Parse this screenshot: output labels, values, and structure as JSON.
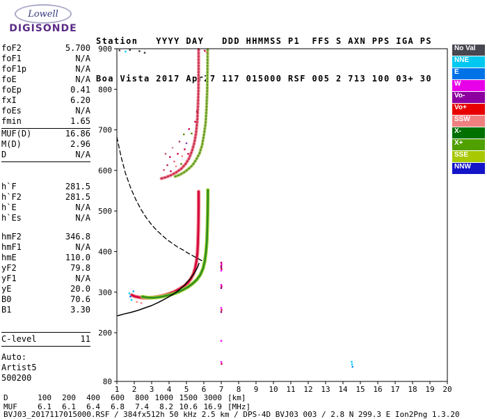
{
  "logo": {
    "name": "Lowell",
    "product": "DIGISONDE"
  },
  "header": {
    "line1": "Station   YYYY DAY   DDD HHMMSS P1  FFS S AXN PPS IGA PS",
    "line2": "Boa Vista 2017 Apr27 117 015000 RSF 005 2 713 100 03+ 30"
  },
  "param_panel": {
    "groups": [
      {
        "rows": [
          {
            "label": "foF2",
            "value": "5.700"
          },
          {
            "label": "foF1",
            "value": "N/A"
          },
          {
            "label": "foF1p",
            "value": "N/A"
          },
          {
            "label": "foE",
            "value": "N/A"
          },
          {
            "label": "foEp",
            "value": "0.41"
          },
          {
            "label": "fxI",
            "value": "6.20"
          },
          {
            "label": "foEs",
            "value": "N/A"
          },
          {
            "label": "fmin",
            "value": "1.65"
          }
        ]
      },
      {
        "rows": [
          {
            "label": "MUF(D)",
            "value": "16.86"
          },
          {
            "label": "M(D)",
            "value": "2.96"
          },
          {
            "label": "D",
            "value": "N/A"
          }
        ]
      },
      {
        "rows": [
          {
            "label": "h`F",
            "value": "281.5"
          },
          {
            "label": "h`F2",
            "value": "281.5"
          },
          {
            "label": "h`E",
            "value": "N/A"
          },
          {
            "label": "h`Es",
            "value": "N/A"
          }
        ]
      },
      {
        "rows": [
          {
            "label": "hmF2",
            "value": "346.8"
          },
          {
            "label": "hmF1",
            "value": "N/A"
          },
          {
            "label": "hmE",
            "value": "110.0"
          },
          {
            "label": "yF2",
            "value": "79.8"
          },
          {
            "label": "yF1",
            "value": "N/A"
          },
          {
            "label": "yE",
            "value": "20.0"
          },
          {
            "label": "B0",
            "value": "70.6"
          },
          {
            "label": "B1",
            "value": "3.30"
          }
        ]
      },
      {
        "rows": [
          {
            "label": "C-level",
            "value": "11"
          }
        ]
      }
    ],
    "footer_lines": [
      "Auto:",
      "Artist5",
      "500200"
    ]
  },
  "legend": {
    "text_color": "#ffffff",
    "items": [
      {
        "label": "No Val",
        "color": "#474751"
      },
      {
        "label": "NNE",
        "color": "#00c8f0"
      },
      {
        "label": "E",
        "color": "#0072e8"
      },
      {
        "label": "W",
        "color": "#e800e8"
      },
      {
        "label": "Vo-",
        "color": "#8c00a0"
      },
      {
        "label": "Vo+",
        "color": "#e80000"
      },
      {
        "label": "SSW",
        "color": "#f08080"
      },
      {
        "label": "X-",
        "color": "#007000"
      },
      {
        "label": "X+",
        "color": "#50a000"
      },
      {
        "label": "SSE",
        "color": "#a8c800"
      },
      {
        "label": "NNW",
        "color": "#1414c8"
      }
    ]
  },
  "chart_data": {
    "type": "scatter",
    "title": "",
    "xlabel": "",
    "ylabel": "",
    "x_unit": "MHz",
    "y_unit": "km",
    "xlim": [
      1,
      20
    ],
    "ylim": [
      80,
      900
    ],
    "grid": false,
    "x_ticks": [
      1,
      2,
      3,
      4,
      5,
      6,
      7,
      8,
      9,
      10,
      11,
      12,
      13,
      14,
      15,
      16,
      17,
      18,
      19,
      20
    ],
    "y_ticks": [
      80,
      200,
      300,
      400,
      500,
      600,
      700,
      800,
      900
    ],
    "series": [
      {
        "name": "F2 O-mode trace",
        "color": "#d40040",
        "halo": "#f08080",
        "width": 2.6,
        "points": [
          [
            1.85,
            293
          ],
          [
            2.0,
            290
          ],
          [
            2.2,
            288
          ],
          [
            2.5,
            286
          ],
          [
            2.8,
            286
          ],
          [
            3.1,
            287
          ],
          [
            3.4,
            289
          ],
          [
            3.7,
            292
          ],
          [
            4.0,
            296
          ],
          [
            4.3,
            301
          ],
          [
            4.6,
            308
          ],
          [
            4.9,
            316
          ],
          [
            5.1,
            324
          ],
          [
            5.25,
            333
          ],
          [
            5.4,
            345
          ],
          [
            5.5,
            359
          ],
          [
            5.58,
            377
          ],
          [
            5.63,
            398
          ],
          [
            5.66,
            422
          ],
          [
            5.68,
            450
          ],
          [
            5.69,
            480
          ],
          [
            5.7,
            512
          ],
          [
            5.7,
            548
          ]
        ]
      },
      {
        "name": "F2 X-mode trace",
        "color": "#2d8a1e",
        "halo": "#9acd32",
        "width": 2.4,
        "points": [
          [
            2.45,
            289
          ],
          [
            2.7,
            287
          ],
          [
            3.0,
            286
          ],
          [
            3.3,
            287
          ],
          [
            3.6,
            289
          ],
          [
            3.9,
            292
          ],
          [
            4.2,
            295
          ],
          [
            4.5,
            300
          ],
          [
            4.8,
            306
          ],
          [
            5.1,
            313
          ],
          [
            5.35,
            321
          ],
          [
            5.6,
            331
          ],
          [
            5.8,
            343
          ],
          [
            5.95,
            358
          ],
          [
            6.05,
            376
          ],
          [
            6.12,
            398
          ],
          [
            6.17,
            425
          ],
          [
            6.2,
            458
          ],
          [
            6.22,
            495
          ],
          [
            6.23,
            535
          ],
          [
            6.23,
            552
          ]
        ]
      },
      {
        "name": "F2 O-mode 2nd hop",
        "color": "#cc2244",
        "halo": "#e78a9a",
        "width": 2,
        "dash": "2,2.5",
        "points": [
          [
            3.55,
            580
          ],
          [
            3.8,
            583
          ],
          [
            4.1,
            588
          ],
          [
            4.4,
            595
          ],
          [
            4.7,
            604
          ],
          [
            4.95,
            616
          ],
          [
            5.15,
            630
          ],
          [
            5.32,
            648
          ],
          [
            5.45,
            668
          ],
          [
            5.55,
            692
          ],
          [
            5.62,
            722
          ],
          [
            5.66,
            758
          ],
          [
            5.69,
            800
          ],
          [
            5.7,
            850
          ],
          [
            5.7,
            898
          ]
        ]
      },
      {
        "name": "F2 X-mode 2nd hop",
        "color": "#4b8f22",
        "halo": "#b4cc66",
        "width": 1.8,
        "dash": "2,2.5",
        "points": [
          [
            4.35,
            585
          ],
          [
            4.6,
            589
          ],
          [
            4.85,
            595
          ],
          [
            5.1,
            603
          ],
          [
            5.35,
            613
          ],
          [
            5.55,
            626
          ],
          [
            5.75,
            642
          ],
          [
            5.9,
            662
          ],
          [
            6.0,
            686
          ],
          [
            6.1,
            716
          ],
          [
            6.15,
            752
          ],
          [
            6.19,
            795
          ],
          [
            6.21,
            845
          ],
          [
            6.22,
            898
          ]
        ]
      },
      {
        "name": "MUF transmission curve",
        "color": "#000000",
        "width": 1.3,
        "dash": "6,4",
        "points": [
          [
            1.0,
            682
          ],
          [
            1.25,
            632
          ],
          [
            1.5,
            592
          ],
          [
            1.8,
            556
          ],
          [
            2.1,
            527
          ],
          [
            2.4,
            503
          ],
          [
            2.7,
            483
          ],
          [
            3.0,
            466
          ],
          [
            3.3,
            452
          ],
          [
            3.6,
            440
          ],
          [
            3.9,
            429
          ],
          [
            4.2,
            420
          ],
          [
            4.5,
            411
          ],
          [
            4.8,
            404
          ],
          [
            5.1,
            396
          ],
          [
            5.4,
            389
          ],
          [
            5.7,
            382
          ],
          [
            5.95,
            376
          ]
        ]
      },
      {
        "name": "true height profile",
        "color": "#000000",
        "width": 1.5,
        "points": [
          [
            1.05,
            242
          ],
          [
            1.4,
            246
          ],
          [
            1.8,
            250
          ],
          [
            2.2,
            255
          ],
          [
            2.6,
            261
          ],
          [
            3.0,
            267
          ],
          [
            3.4,
            275
          ],
          [
            3.8,
            284
          ],
          [
            4.2,
            294
          ],
          [
            4.6,
            306
          ],
          [
            4.9,
            318
          ],
          [
            5.2,
            332
          ],
          [
            5.45,
            347
          ],
          [
            5.6,
            358
          ],
          [
            5.68,
            366
          ],
          [
            5.72,
            371
          ]
        ]
      }
    ],
    "noise_points": [
      [
        7.0,
        373,
        "#cc0044"
      ],
      [
        7.02,
        369,
        "#ff00ff"
      ],
      [
        7.0,
        365,
        "#cc0044"
      ],
      [
        7.0,
        361,
        "#880088"
      ],
      [
        7.02,
        357,
        "#cc0044"
      ],
      [
        7.0,
        353,
        "#ff00ff"
      ],
      [
        7.0,
        318,
        "#ff00ff"
      ],
      [
        7.02,
        314,
        "#cc0044"
      ],
      [
        7.0,
        310,
        "#880088"
      ],
      [
        7.0,
        261,
        "#ff00ff"
      ],
      [
        7.02,
        256,
        "#cc0044"
      ],
      [
        7.0,
        251,
        "#880088"
      ],
      [
        7.0,
        180,
        "#ff00ff"
      ],
      [
        7.0,
        128,
        "#ff00ff"
      ],
      [
        7.02,
        123,
        "#cc0044"
      ],
      [
        14.5,
        128,
        "#00ccff"
      ],
      [
        14.52,
        122,
        "#00ccff"
      ],
      [
        14.55,
        116,
        "#0088ee"
      ],
      [
        1.15,
        896,
        "#333333"
      ],
      [
        1.5,
        893,
        "#00ccff"
      ],
      [
        1.75,
        897,
        "#333333"
      ],
      [
        2.3,
        894,
        "#333333"
      ],
      [
        2.6,
        890,
        "#333333"
      ],
      [
        6.05,
        895,
        "#cc0044"
      ],
      [
        6.15,
        891,
        "#f08080"
      ],
      [
        1.72,
        297,
        "#00ccff"
      ],
      [
        1.78,
        289,
        "#0066ff"
      ],
      [
        1.84,
        281,
        "#00ccff"
      ],
      [
        1.95,
        302,
        "#00aaee"
      ],
      [
        2.15,
        276,
        "#f08080"
      ],
      [
        2.4,
        273,
        "#f08080"
      ],
      [
        3.7,
        601,
        "#cc4455"
      ],
      [
        3.9,
        613,
        "#aa2244"
      ],
      [
        4.1,
        598,
        "#cc0044"
      ],
      [
        4.3,
        622,
        "#dd6677"
      ],
      [
        4.5,
        641,
        "#cc0044"
      ],
      [
        4.7,
        616,
        "#558800"
      ],
      [
        4.9,
        652,
        "#cc0044"
      ],
      [
        5.0,
        667,
        "#884499"
      ],
      [
        5.1,
        641,
        "#cc0044"
      ],
      [
        5.3,
        691,
        "#558800"
      ],
      [
        4.2,
        656,
        "#cc8899"
      ],
      [
        4.6,
        671,
        "#aa4455"
      ],
      [
        3.8,
        641,
        "#bb5566"
      ],
      [
        4.05,
        633,
        "#cc0044"
      ],
      [
        5.15,
        702,
        "#cc0044"
      ],
      [
        4.85,
        689,
        "#558800"
      ],
      [
        5.5,
        720,
        "#cc0044"
      ],
      [
        5.6,
        745,
        "#aa2244"
      ],
      [
        4.4,
        610,
        "#f08080"
      ],
      [
        4.75,
        635,
        "#f08080"
      ]
    ]
  },
  "distance_table": {
    "rows": [
      {
        "label": "D",
        "values": [
          "100",
          "200",
          "400",
          "600",
          "800",
          "1000",
          "1500",
          "3000"
        ],
        "unit": "[km]"
      },
      {
        "label": "MUF",
        "values": [
          "6.1",
          "6.1",
          "6.4",
          "6.8",
          "7.4",
          "8.2",
          "10.6",
          "16.9"
        ],
        "unit": "[MHz]"
      }
    ]
  },
  "status_line": "BVJ03_2017117015000.RSF / 384fx512h 50 kHz 2.5 km / DPS-4D BVJ03 003 / 2.8 N 299.3 E Ion2Png 1.3.20"
}
